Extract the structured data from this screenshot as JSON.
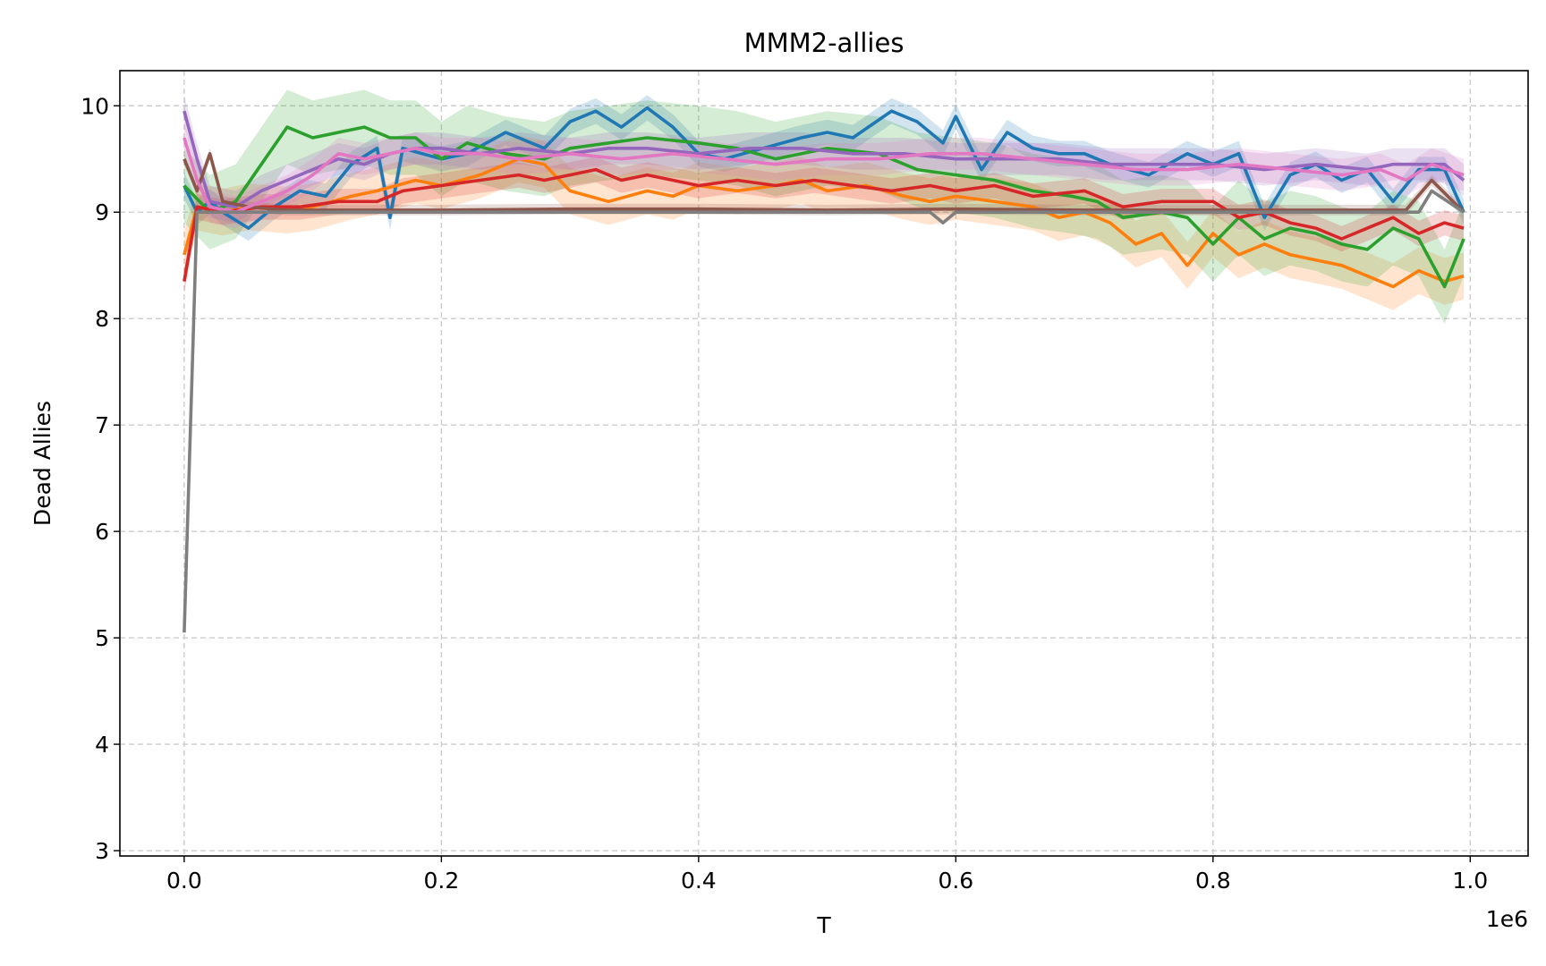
{
  "chart_data": {
    "type": "line",
    "title": "MMM2-allies",
    "xlabel": "T",
    "ylabel": "Dead Allies",
    "x_offset_label": "1e6",
    "xlim": [
      -0.05,
      1.045
    ],
    "ylim": [
      2.95,
      10.33
    ],
    "xticks": [
      0.0,
      0.2,
      0.4,
      0.6,
      0.8,
      1.0
    ],
    "xtick_labels": [
      "0.0",
      "0.2",
      "0.4",
      "0.6",
      "0.8",
      "1.0"
    ],
    "yticks": [
      3,
      4,
      5,
      6,
      7,
      8,
      9,
      10
    ],
    "ytick_labels": [
      "3",
      "4",
      "5",
      "6",
      "7",
      "8",
      "9",
      "10"
    ],
    "grid": true,
    "series": [
      {
        "color": "#1f77b4",
        "x": [
          0.0,
          0.01,
          0.02,
          0.03,
          0.05,
          0.07,
          0.09,
          0.11,
          0.13,
          0.15,
          0.16,
          0.17,
          0.2,
          0.22,
          0.25,
          0.28,
          0.3,
          0.32,
          0.34,
          0.36,
          0.38,
          0.4,
          0.42,
          0.45,
          0.48,
          0.5,
          0.52,
          0.55,
          0.57,
          0.59,
          0.6,
          0.62,
          0.64,
          0.66,
          0.68,
          0.7,
          0.72,
          0.75,
          0.78,
          0.8,
          0.82,
          0.84,
          0.86,
          0.88,
          0.9,
          0.92,
          0.94,
          0.96,
          0.98,
          0.995
        ],
        "y": [
          9.25,
          9.0,
          9.1,
          9.0,
          8.85,
          9.05,
          9.2,
          9.15,
          9.45,
          9.6,
          8.95,
          9.6,
          9.5,
          9.55,
          9.75,
          9.6,
          9.85,
          9.95,
          9.8,
          9.98,
          9.8,
          9.55,
          9.5,
          9.6,
          9.7,
          9.75,
          9.7,
          9.95,
          9.85,
          9.65,
          9.9,
          9.4,
          9.75,
          9.6,
          9.55,
          9.55,
          9.45,
          9.35,
          9.55,
          9.45,
          9.55,
          8.95,
          9.35,
          9.45,
          9.3,
          9.4,
          9.1,
          9.4,
          9.4,
          9.0
        ],
        "band": 0.12
      },
      {
        "color": "#ff7f0e",
        "x": [
          0.0,
          0.01,
          0.03,
          0.05,
          0.08,
          0.1,
          0.13,
          0.15,
          0.18,
          0.2,
          0.23,
          0.26,
          0.28,
          0.3,
          0.33,
          0.36,
          0.38,
          0.4,
          0.43,
          0.46,
          0.48,
          0.5,
          0.53,
          0.56,
          0.58,
          0.6,
          0.63,
          0.66,
          0.68,
          0.7,
          0.72,
          0.74,
          0.76,
          0.78,
          0.8,
          0.82,
          0.84,
          0.86,
          0.88,
          0.9,
          0.92,
          0.94,
          0.96,
          0.98,
          0.995
        ],
        "y": [
          8.6,
          9.05,
          9.0,
          9.05,
          9.02,
          9.05,
          9.15,
          9.2,
          9.3,
          9.25,
          9.35,
          9.5,
          9.45,
          9.2,
          9.1,
          9.2,
          9.15,
          9.25,
          9.2,
          9.25,
          9.3,
          9.2,
          9.25,
          9.15,
          9.1,
          9.15,
          9.1,
          9.05,
          8.95,
          9.0,
          8.9,
          8.7,
          8.8,
          8.5,
          8.8,
          8.6,
          8.7,
          8.6,
          8.55,
          8.5,
          8.4,
          8.3,
          8.45,
          8.35,
          8.4
        ],
        "band": 0.22
      },
      {
        "color": "#2ca02c",
        "x": [
          0.0,
          0.02,
          0.04,
          0.06,
          0.08,
          0.1,
          0.12,
          0.14,
          0.16,
          0.18,
          0.2,
          0.22,
          0.25,
          0.28,
          0.3,
          0.33,
          0.36,
          0.4,
          0.43,
          0.46,
          0.5,
          0.54,
          0.57,
          0.6,
          0.63,
          0.66,
          0.69,
          0.71,
          0.73,
          0.76,
          0.78,
          0.8,
          0.82,
          0.84,
          0.86,
          0.88,
          0.9,
          0.92,
          0.94,
          0.96,
          0.98,
          0.995
        ],
        "y": [
          9.25,
          9.0,
          9.1,
          9.45,
          9.8,
          9.7,
          9.75,
          9.8,
          9.7,
          9.7,
          9.5,
          9.65,
          9.55,
          9.5,
          9.6,
          9.65,
          9.7,
          9.65,
          9.6,
          9.5,
          9.6,
          9.55,
          9.4,
          9.35,
          9.3,
          9.2,
          9.15,
          9.1,
          8.95,
          9.0,
          8.95,
          8.7,
          8.95,
          8.75,
          8.85,
          8.8,
          8.7,
          8.65,
          8.85,
          8.75,
          8.3,
          8.75
        ],
        "band": 0.35
      },
      {
        "color": "#d62728",
        "x": [
          0.0,
          0.01,
          0.03,
          0.06,
          0.09,
          0.12,
          0.15,
          0.17,
          0.2,
          0.23,
          0.26,
          0.28,
          0.3,
          0.32,
          0.34,
          0.36,
          0.38,
          0.4,
          0.43,
          0.46,
          0.49,
          0.52,
          0.55,
          0.58,
          0.6,
          0.63,
          0.66,
          0.7,
          0.73,
          0.76,
          0.8,
          0.82,
          0.84,
          0.86,
          0.88,
          0.9,
          0.92,
          0.94,
          0.96,
          0.98,
          0.995
        ],
        "y": [
          8.35,
          9.05,
          9.0,
          9.05,
          9.05,
          9.1,
          9.1,
          9.2,
          9.25,
          9.3,
          9.35,
          9.3,
          9.35,
          9.4,
          9.3,
          9.35,
          9.3,
          9.25,
          9.3,
          9.25,
          9.3,
          9.25,
          9.2,
          9.25,
          9.2,
          9.25,
          9.15,
          9.2,
          9.05,
          9.1,
          9.1,
          8.95,
          9.0,
          8.9,
          8.85,
          8.75,
          8.85,
          8.95,
          8.8,
          8.9,
          8.85
        ],
        "band": 0.12
      },
      {
        "color": "#9467bd",
        "x": [
          0.0,
          0.01,
          0.02,
          0.04,
          0.06,
          0.08,
          0.1,
          0.12,
          0.14,
          0.16,
          0.18,
          0.2,
          0.23,
          0.26,
          0.3,
          0.33,
          0.36,
          0.4,
          0.44,
          0.48,
          0.52,
          0.56,
          0.6,
          0.64,
          0.68,
          0.72,
          0.76,
          0.8,
          0.84,
          0.88,
          0.92,
          0.94,
          0.96,
          0.98,
          0.995
        ],
        "y": [
          9.95,
          9.5,
          9.1,
          9.05,
          9.2,
          9.3,
          9.4,
          9.5,
          9.45,
          9.55,
          9.6,
          9.6,
          9.55,
          9.6,
          9.55,
          9.6,
          9.6,
          9.55,
          9.6,
          9.6,
          9.55,
          9.55,
          9.5,
          9.5,
          9.5,
          9.45,
          9.45,
          9.45,
          9.4,
          9.45,
          9.4,
          9.45,
          9.45,
          9.45,
          9.3
        ],
        "band": 0.15
      },
      {
        "color": "#8c564b",
        "x": [
          0.0,
          0.01,
          0.02,
          0.03,
          0.05,
          0.08,
          0.12,
          0.2,
          0.3,
          0.4,
          0.5,
          0.6,
          0.7,
          0.8,
          0.9,
          0.95,
          0.97,
          0.995
        ],
        "y": [
          9.5,
          9.2,
          9.55,
          9.1,
          9.05,
          9.02,
          9.02,
          9.02,
          9.03,
          9.03,
          9.02,
          9.03,
          9.02,
          9.02,
          9.02,
          9.02,
          9.3,
          9.0
        ],
        "band": 0.05
      },
      {
        "color": "#e377c2",
        "x": [
          0.0,
          0.01,
          0.02,
          0.04,
          0.06,
          0.08,
          0.1,
          0.12,
          0.14,
          0.16,
          0.18,
          0.2,
          0.23,
          0.26,
          0.3,
          0.34,
          0.38,
          0.42,
          0.46,
          0.5,
          0.54,
          0.58,
          0.62,
          0.66,
          0.7,
          0.74,
          0.78,
          0.82,
          0.86,
          0.9,
          0.93,
          0.95,
          0.97,
          0.995
        ],
        "y": [
          9.7,
          9.3,
          9.05,
          9.0,
          9.1,
          9.2,
          9.35,
          9.55,
          9.5,
          9.55,
          9.6,
          9.55,
          9.55,
          9.5,
          9.55,
          9.5,
          9.55,
          9.5,
          9.45,
          9.5,
          9.5,
          9.55,
          9.55,
          9.5,
          9.45,
          9.4,
          9.4,
          9.45,
          9.4,
          9.35,
          9.4,
          9.3,
          9.45,
          9.35
        ],
        "band": 0.15
      },
      {
        "color": "#7f7f7f",
        "x": [
          0.0,
          0.01,
          0.02,
          0.05,
          0.1,
          0.2,
          0.3,
          0.4,
          0.5,
          0.58,
          0.59,
          0.6,
          0.7,
          0.8,
          0.9,
          0.96,
          0.97,
          0.995
        ],
        "y": [
          5.05,
          9.0,
          9.0,
          9.0,
          9.0,
          9.0,
          9.0,
          9.0,
          9.0,
          9.0,
          8.9,
          9.0,
          9.0,
          9.0,
          9.0,
          9.0,
          9.2,
          9.0
        ],
        "band": 0.0
      }
    ]
  }
}
